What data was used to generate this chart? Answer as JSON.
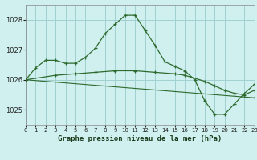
{
  "title": "Graphe pression niveau de la mer (hPa)",
  "bg_color": "#d0f0f0",
  "grid_color": "#a0d0d0",
  "line_color": "#2d6a2d",
  "xlim": [
    0,
    23
  ],
  "ylim": [
    1024.5,
    1028.5
  ],
  "yticks": [
    1025,
    1026,
    1027,
    1028
  ],
  "xticks": [
    0,
    1,
    2,
    3,
    4,
    5,
    6,
    7,
    8,
    9,
    10,
    11,
    12,
    13,
    14,
    15,
    16,
    17,
    18,
    19,
    20,
    21,
    22,
    23
  ],
  "series1_x": [
    0,
    1,
    2,
    3,
    4,
    5,
    6,
    7,
    8,
    9,
    10,
    11,
    12,
    13,
    14,
    15,
    16,
    17,
    18,
    19,
    20,
    21,
    22,
    23
  ],
  "series1_y": [
    1026.0,
    1026.4,
    1026.65,
    1026.65,
    1026.55,
    1026.55,
    1026.75,
    1027.05,
    1027.55,
    1027.85,
    1028.15,
    1028.15,
    1027.65,
    1027.15,
    1026.6,
    1026.45,
    1026.3,
    1026.0,
    1025.3,
    1024.85,
    1024.85,
    1025.2,
    1025.55,
    1025.85
  ],
  "series2_x": [
    0,
    3,
    5,
    7,
    9,
    11,
    13,
    15,
    16,
    18,
    19,
    20,
    21,
    22,
    23
  ],
  "series2_y": [
    1026.0,
    1026.15,
    1026.2,
    1026.25,
    1026.3,
    1026.3,
    1026.25,
    1026.2,
    1026.15,
    1025.95,
    1025.8,
    1025.65,
    1025.55,
    1025.5,
    1025.65
  ],
  "series3_x": [
    0,
    23
  ],
  "series3_y": [
    1026.0,
    1025.4
  ]
}
